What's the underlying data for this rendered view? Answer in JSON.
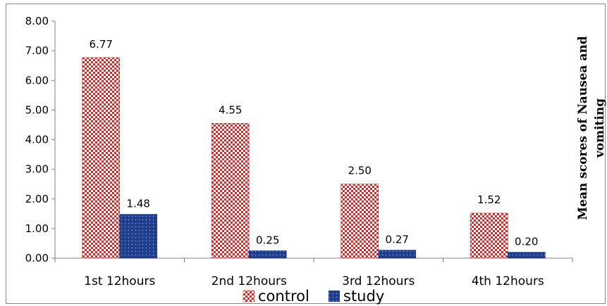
{
  "chart_data": {
    "type": "bar",
    "categories": [
      "1st 12hours",
      "2nd 12hours",
      "3rd 12hours",
      "4th 12hours"
    ],
    "series": [
      {
        "name": "control",
        "values": [
          6.77,
          4.55,
          2.5,
          1.52
        ],
        "labels": [
          "6.77",
          "4.55",
          "2.50",
          "1.52"
        ],
        "color": "#d42a2a"
      },
      {
        "name": "study",
        "values": [
          1.48,
          0.25,
          0.27,
          0.2
        ],
        "labels": [
          "1.48",
          "0.25",
          "0.27",
          "0.20"
        ],
        "color": "#1f3f8c"
      }
    ],
    "yticks": [
      "0.00",
      "1.00",
      "2.00",
      "3.00",
      "4.00",
      "5.00",
      "6.00",
      "7.00",
      "8.00"
    ],
    "ylim": [
      0,
      8
    ],
    "ylabel_lines": [
      "Mean scores of Nausea and",
      "vomiting"
    ],
    "legend_placement": "bottom",
    "grid": false
  }
}
